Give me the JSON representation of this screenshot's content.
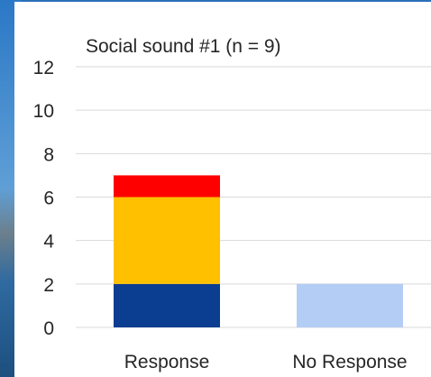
{
  "chart_data": {
    "type": "bar",
    "stacked": true,
    "title": "Social sound #1 (n = 9)",
    "xlabel": "",
    "ylabel": "",
    "ylim": [
      0,
      12
    ],
    "yticks": [
      0,
      2,
      4,
      6,
      8,
      10,
      12
    ],
    "grid": true,
    "categories": [
      "Response",
      "No Response"
    ],
    "bars": [
      {
        "category": "Response",
        "segments": [
          {
            "value": 2,
            "color": "#0b3d91"
          },
          {
            "value": 4,
            "color": "#ffc000"
          },
          {
            "value": 1,
            "color": "#ff0000"
          }
        ]
      },
      {
        "category": "No Response",
        "segments": [
          {
            "value": 2,
            "color": "#b4cdf5"
          }
        ]
      }
    ]
  }
}
